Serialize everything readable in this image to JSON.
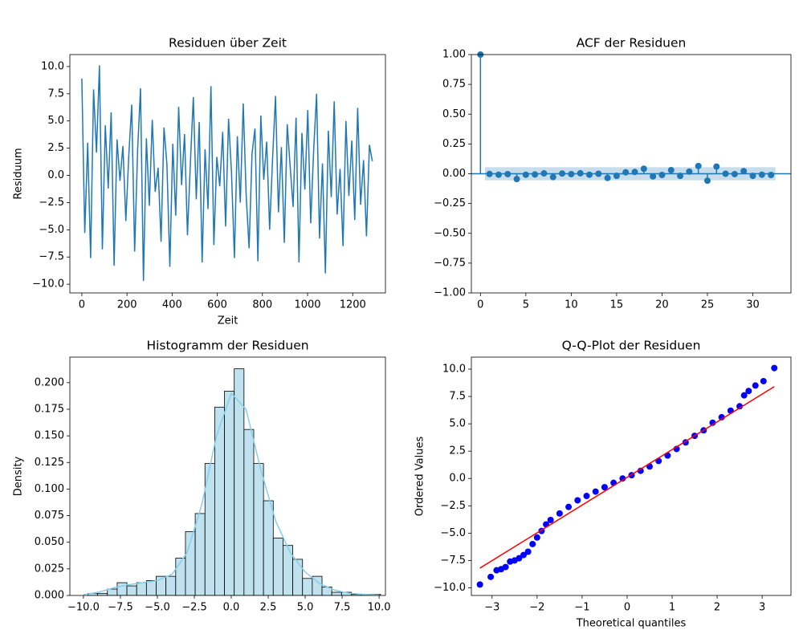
{
  "chart_data": [
    {
      "type": "line",
      "title": "Residuen über Zeit",
      "xlabel": "Zeit",
      "ylabel": "Residuum",
      "color": "#1f77b4",
      "x": [
        0,
        13,
        26,
        39,
        52,
        65,
        78,
        91,
        104,
        117,
        130,
        143,
        156,
        169,
        182,
        195,
        208,
        221,
        234,
        247,
        260,
        273,
        286,
        299,
        312,
        325,
        338,
        351,
        364,
        377,
        390,
        403,
        416,
        429,
        442,
        455,
        468,
        481,
        494,
        507,
        520,
        533,
        546,
        559,
        572,
        585,
        598,
        611,
        624,
        637,
        650,
        663,
        676,
        689,
        702,
        715,
        728,
        741,
        754,
        767,
        780,
        793,
        806,
        819,
        832,
        845,
        858,
        871,
        884,
        897,
        910,
        923,
        936,
        949,
        962,
        975,
        988,
        1001,
        1014,
        1027,
        1040,
        1053,
        1066,
        1079,
        1092,
        1105,
        1118,
        1131,
        1144,
        1157,
        1170,
        1183,
        1196,
        1209,
        1222,
        1235,
        1248,
        1261,
        1274,
        1287
      ],
      "values": [
        8.9,
        -5.3,
        3.0,
        -7.6,
        7.9,
        2.1,
        10.1,
        -6.8,
        4.6,
        -1.2,
        5.8,
        -8.3,
        3.3,
        -0.5,
        2.7,
        -4.2,
        1.8,
        6.5,
        -7.0,
        2.2,
        8.0,
        -9.7,
        3.4,
        -2.8,
        5.1,
        -1.5,
        0.7,
        -6.1,
        4.4,
        1.0,
        -8.4,
        2.9,
        -3.7,
        6.3,
        -0.9,
        3.8,
        -5.5,
        1.2,
        7.2,
        -2.2,
        4.9,
        -8.0,
        2.4,
        -3.1,
        8.2,
        -6.4,
        1.7,
        -1.0,
        4.0,
        -4.7,
        5.2,
        0.3,
        -7.6,
        3.6,
        -2.5,
        6.6,
        -1.8,
        -6.7,
        2.0,
        4.3,
        -7.9,
        5.5,
        -0.4,
        3.1,
        -5.0,
        1.5,
        7.3,
        -3.4,
        2.6,
        -6.2,
        4.7,
        0.8,
        -2.9,
        5.3,
        -8.0,
        3.9,
        -1.3,
        6.0,
        -4.4,
        2.3,
        7.5,
        -5.8,
        1.1,
        -9.0,
        4.1,
        -2.0,
        6.8,
        -3.6,
        0.6,
        -6.5,
        5.0,
        -1.9,
        3.2,
        -4.1,
        6.2,
        -2.7,
        1.4,
        -5.6,
        2.8,
        1.3
      ],
      "xlim": [
        -53,
        1345
      ],
      "ylim": [
        -10.8,
        11.1
      ],
      "xticks": [
        0,
        200,
        400,
        600,
        800,
        1000,
        1200
      ],
      "yticks": [
        {
          "value": -10,
          "label": "−10.0"
        },
        {
          "value": -7.5,
          "label": "−7.5"
        },
        {
          "value": -5,
          "label": "−5.0"
        },
        {
          "value": -2.5,
          "label": "−2.5"
        },
        {
          "value": 0,
          "label": "0.0"
        },
        2.5,
        {
          "value": 5,
          "label": "5.0"
        },
        7.5,
        {
          "value": 10,
          "label": "10.0"
        }
      ]
    },
    {
      "type": "stem",
      "title": "ACF der Residuen",
      "color": "#1f77b4",
      "confidence_band": 0.055,
      "x": [
        0,
        1,
        2,
        3,
        4,
        5,
        6,
        7,
        8,
        9,
        10,
        11,
        12,
        13,
        14,
        15,
        16,
        17,
        18,
        19,
        20,
        21,
        22,
        23,
        24,
        25,
        26,
        27,
        28,
        29,
        30,
        31,
        32
      ],
      "values": [
        1.0,
        -0.002,
        -0.008,
        -0.003,
        -0.045,
        -0.008,
        -0.006,
        0.003,
        -0.028,
        0.002,
        -0.003,
        0.004,
        -0.008,
        0.0,
        -0.035,
        -0.018,
        0.012,
        0.015,
        0.042,
        -0.022,
        -0.01,
        0.03,
        -0.018,
        0.018,
        0.065,
        -0.058,
        0.06,
        0.0,
        -0.003,
        0.022,
        -0.018,
        -0.008,
        -0.01
      ],
      "xlim": [
        -1,
        34.2
      ],
      "ylim": [
        -1,
        1
      ],
      "xticks": [
        0,
        5,
        10,
        15,
        20,
        25,
        30
      ],
      "yticks": [
        {
          "value": -1,
          "label": "−1.00"
        },
        {
          "value": -0.75,
          "label": "−0.75"
        },
        {
          "value": -0.5,
          "label": "−0.50"
        },
        {
          "value": -0.25,
          "label": "−0.25"
        },
        {
          "value": 0,
          "label": "0.00"
        },
        0.25,
        {
          "value": 0.5,
          "label": "0.50"
        },
        0.75,
        {
          "value": 1,
          "label": "1.00"
        }
      ]
    },
    {
      "type": "histogram",
      "title": "Histogramm der Residuen",
      "ylabel": "Density",
      "color": "#bfe2ee",
      "edgecolor": "#000000",
      "bins": [
        -9.7,
        -9.04,
        -8.38,
        -7.72,
        -7.06,
        -6.4,
        -5.74,
        -5.08,
        -4.42,
        -3.76,
        -3.1,
        -2.44,
        -1.78,
        -1.12,
        -0.46,
        0.2,
        0.86,
        1.52,
        2.18,
        2.84,
        3.5,
        4.16,
        4.82,
        5.48,
        6.14,
        6.8,
        7.46,
        8.12,
        8.78,
        9.44,
        10.1
      ],
      "values": [
        0.002,
        0.002,
        0.006,
        0.012,
        0.009,
        0.012,
        0.014,
        0.018,
        0.018,
        0.035,
        0.06,
        0.077,
        0.124,
        0.177,
        0.192,
        0.213,
        0.156,
        0.124,
        0.089,
        0.054,
        0.047,
        0.034,
        0.016,
        0.018,
        0.008,
        0.003,
        0.003,
        0.001,
        0.001,
        0.001
      ],
      "kde": {
        "color": "#87ceeb",
        "x": [
          -10,
          -9,
          -8,
          -7,
          -6,
          -5,
          -4,
          -3,
          -2,
          -1,
          0,
          1,
          2,
          3,
          4,
          5,
          6,
          7,
          8,
          9,
          10
        ],
        "values": [
          0.0008,
          0.003,
          0.007,
          0.01,
          0.012,
          0.014,
          0.02,
          0.04,
          0.085,
          0.15,
          0.19,
          0.175,
          0.118,
          0.07,
          0.04,
          0.022,
          0.011,
          0.005,
          0.002,
          0.001,
          0.0003
        ]
      },
      "xlim": [
        -10.92,
        10.43
      ],
      "ylim": [
        0,
        0.224
      ],
      "xticks": [
        {
          "value": -10,
          "label": "−10.0"
        },
        {
          "value": -7.5,
          "label": "−7.5"
        },
        {
          "value": -5,
          "label": "−5.0"
        },
        {
          "value": -2.5,
          "label": "−2.5"
        },
        {
          "value": 0,
          "label": "0.0"
        },
        2.5,
        {
          "value": 5,
          "label": "5.0"
        },
        7.5,
        {
          "value": 10,
          "label": "10.0"
        }
      ],
      "yticks": [
        {
          "value": 0,
          "label": "0.000"
        },
        0.025,
        {
          "value": 0.05,
          "label": "0.050"
        },
        0.075,
        {
          "value": 0.1,
          "label": "0.100"
        },
        0.125,
        {
          "value": 0.15,
          "label": "0.150"
        },
        0.175,
        {
          "value": 0.2,
          "label": "0.200"
        }
      ]
    },
    {
      "type": "scatter",
      "title": "Q-Q-Plot der Residuen",
      "xlabel": "Theoretical quantiles",
      "ylabel": "Ordered Values",
      "color": "#0000ff",
      "x": [
        -3.27,
        -3.03,
        -2.9,
        -2.8,
        -2.7,
        -2.6,
        -2.5,
        -2.4,
        -2.3,
        -2.2,
        -2.1,
        -2.0,
        -1.9,
        -1.8,
        -1.7,
        -1.5,
        -1.3,
        -1.1,
        -0.9,
        -0.7,
        -0.5,
        -0.3,
        -0.1,
        0.1,
        0.3,
        0.5,
        0.7,
        0.9,
        1.1,
        1.3,
        1.5,
        1.7,
        1.9,
        2.1,
        2.3,
        2.5,
        2.6,
        2.7,
        2.85,
        3.03,
        3.27
      ],
      "values": [
        -9.7,
        -9.0,
        -8.4,
        -8.3,
        -8.1,
        -7.6,
        -7.5,
        -7.3,
        -7.0,
        -6.7,
        -6.0,
        -5.4,
        -4.8,
        -4.2,
        -3.8,
        -3.2,
        -2.6,
        -2.0,
        -1.6,
        -1.2,
        -0.8,
        -0.4,
        0.0,
        0.3,
        0.7,
        1.1,
        1.6,
        2.1,
        2.7,
        3.3,
        3.9,
        4.4,
        5.1,
        5.6,
        6.2,
        6.6,
        7.6,
        8.0,
        8.5,
        8.9,
        10.1
      ],
      "fit_line": {
        "color": "#ff0000",
        "x": [
          -3.27,
          3.27
        ],
        "values": [
          -8.2,
          8.4
        ]
      },
      "xlim": [
        -3.46,
        3.64
      ],
      "ylim": [
        -10.7,
        11.1
      ],
      "xticks": [
        {
          "value": -3,
          "label": "−3"
        },
        {
          "value": -2,
          "label": "−2"
        },
        {
          "value": -1,
          "label": "−1"
        },
        0,
        1,
        2,
        3
      ],
      "yticks": [
        {
          "value": -10,
          "label": "−10.0"
        },
        {
          "value": -7.5,
          "label": "−7.5"
        },
        {
          "value": -5,
          "label": "−5.0"
        },
        {
          "value": -2.5,
          "label": "−2.5"
        },
        {
          "value": 0,
          "label": "0.0"
        },
        2.5,
        {
          "value": 5,
          "label": "5.0"
        },
        7.5,
        {
          "value": 10,
          "label": "10.0"
        }
      ]
    }
  ]
}
